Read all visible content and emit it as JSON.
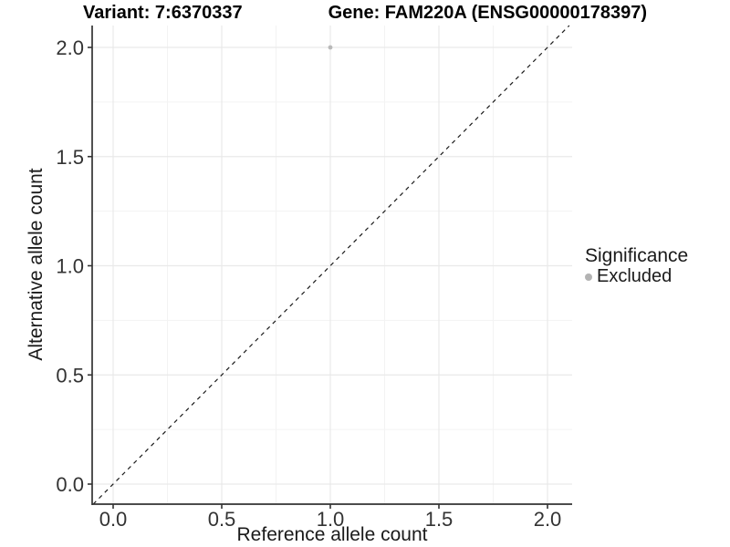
{
  "title": {
    "variant": "Variant: 7:6370337",
    "gene": "Gene: FAM220A (ENSG00000178397)"
  },
  "legend": {
    "title": "Significance",
    "items": [
      {
        "label": "Excluded",
        "color": "#b3b3b3"
      }
    ]
  },
  "colors": {
    "point": "#b9b9b9",
    "grid_major": "#e9e9e9",
    "grid_minor": "#f3f3f3",
    "axis": "#333333",
    "tick_label": "#333333",
    "reference_line": "#1a1a1a"
  },
  "chart_data": {
    "type": "scatter",
    "title": "Variant: 7:6370337    Gene: FAM220A (ENSG00000178397)",
    "xlabel": "Reference allele count",
    "ylabel": "Alternative allele count",
    "xlim": [
      -0.1,
      2.11
    ],
    "ylim": [
      -0.09,
      2.1
    ],
    "xticks": [
      0,
      0.5,
      1,
      1.5,
      2
    ],
    "xtick_labels": [
      "0.0",
      "0.5",
      "1.0",
      "1.5",
      "2.0"
    ],
    "yticks": [
      0,
      0.5,
      1,
      1.5,
      2
    ],
    "ytick_labels": [
      "0.0",
      "0.5",
      "1.0",
      "1.5",
      "2.0"
    ],
    "x_minor": [
      0.25,
      0.75,
      1.25,
      1.75
    ],
    "y_minor": [
      0.25,
      0.75,
      1.25,
      1.75
    ],
    "grid": true,
    "legend_position": "right",
    "series": [
      {
        "name": "Excluded",
        "color": "#b9b9b9",
        "points": [
          {
            "x": 1.0,
            "y": 2.0
          }
        ]
      }
    ],
    "reference_line": {
      "type": "identity",
      "slope": 1,
      "intercept": 0,
      "style": "dashed"
    }
  }
}
